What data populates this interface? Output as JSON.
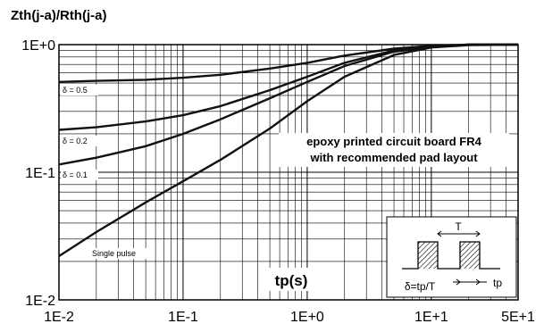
{
  "chart_data": {
    "type": "line",
    "title": "Zth(j-a)/Rth(j-a)",
    "xlabel": "tp(s)",
    "ylabel": "",
    "x_scale": "log",
    "y_scale": "log",
    "xlim": [
      0.01,
      50
    ],
    "ylim": [
      0.01,
      1
    ],
    "grid": true,
    "x_ticks": [
      "1E-2",
      "1E-1",
      "1E+0",
      "1E+1",
      "5E+1"
    ],
    "x_tick_values": [
      0.01,
      0.1,
      1,
      10,
      50
    ],
    "y_ticks": [
      "1E-2",
      "1E-1",
      "1E+0"
    ],
    "y_tick_values": [
      0.01,
      0.1,
      1
    ],
    "series": [
      {
        "name": "δ = 0.5",
        "x": [
          0.01,
          0.02,
          0.05,
          0.1,
          0.2,
          0.5,
          1,
          2,
          5,
          10,
          20,
          50
        ],
        "values": [
          0.51,
          0.52,
          0.53,
          0.55,
          0.58,
          0.65,
          0.72,
          0.82,
          0.93,
          0.98,
          1.0,
          1.0
        ]
      },
      {
        "name": "δ = 0.2",
        "x": [
          0.01,
          0.02,
          0.05,
          0.1,
          0.2,
          0.5,
          1,
          2,
          5,
          10,
          20,
          50
        ],
        "values": [
          0.215,
          0.225,
          0.25,
          0.28,
          0.33,
          0.44,
          0.56,
          0.72,
          0.9,
          0.97,
          1.0,
          1.0
        ]
      },
      {
        "name": "δ = 0.1",
        "x": [
          0.01,
          0.02,
          0.05,
          0.1,
          0.2,
          0.5,
          1,
          2,
          5,
          10,
          20,
          50
        ],
        "values": [
          0.115,
          0.13,
          0.16,
          0.2,
          0.26,
          0.38,
          0.51,
          0.68,
          0.88,
          0.96,
          1.0,
          1.0
        ]
      },
      {
        "name": "Single pulse",
        "x": [
          0.01,
          0.02,
          0.05,
          0.1,
          0.2,
          0.5,
          1,
          2,
          5,
          10,
          20,
          50
        ],
        "values": [
          0.022,
          0.034,
          0.058,
          0.085,
          0.125,
          0.22,
          0.36,
          0.56,
          0.83,
          0.95,
          0.99,
          1.0
        ]
      }
    ],
    "annotations": [
      "epoxy printed circuit board FR4",
      "with recommended pad layout"
    ],
    "inset": {
      "label_T": "T",
      "label_tp": "tp",
      "formula": "δ=tp/T"
    },
    "line_color": "#111111",
    "grid_color": "#000000"
  }
}
